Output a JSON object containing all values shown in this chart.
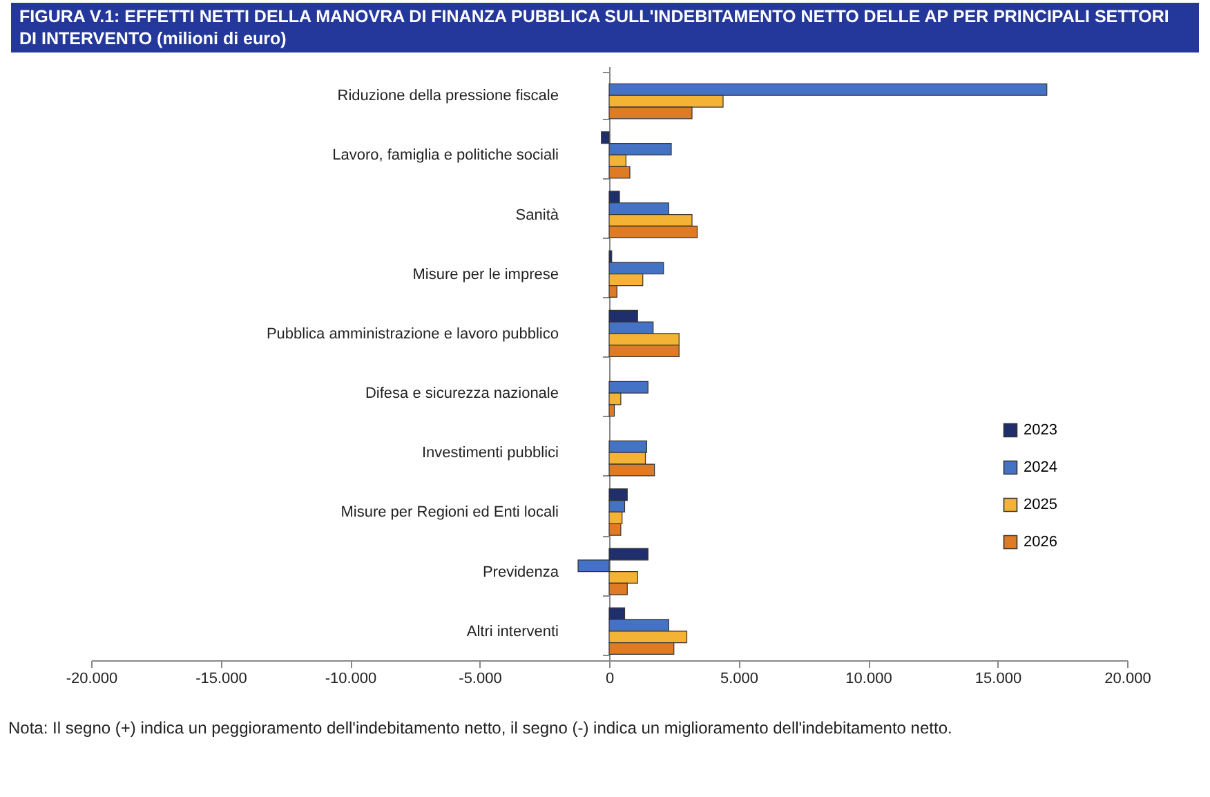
{
  "chart_data": {
    "type": "bar",
    "orientation": "horizontal",
    "title": "FIGURA V.1: EFFETTI NETTI DELLA MANOVRA DI FINANZA PUBBLICA SULL'INDEBITAMENTO NETTO DELLE AP PER PRINCIPALI SETTORI DI INTERVENTO (milioni di euro)",
    "categories": [
      "Riduzione della pressione fiscale",
      "Lavoro, famiglia e politiche sociali",
      "Sanità",
      "Misure per le imprese",
      "Pubblica amministrazione e lavoro pubblico",
      "Difesa e sicurezza nazionale",
      "Investimenti pubblici",
      "Misure per Regioni ed Enti locali",
      "Previdenza",
      "Altri interventi"
    ],
    "series": [
      {
        "name": "2023",
        "color": "#1f2f6e",
        "values": [
          null,
          -300,
          400,
          100,
          1100,
          null,
          null,
          700,
          1500,
          600
        ]
      },
      {
        "name": "2024",
        "color": "#4472c4",
        "values": [
          16900,
          2400,
          2300,
          2100,
          1700,
          1500,
          1450,
          600,
          -1200,
          2300
        ]
      },
      {
        "name": "2025",
        "color": "#f5b335",
        "values": [
          4400,
          650,
          3200,
          1300,
          2700,
          450,
          1400,
          500,
          1100,
          3000
        ]
      },
      {
        "name": "2026",
        "color": "#e07b25",
        "values": [
          3200,
          800,
          3400,
          300,
          2700,
          200,
          1750,
          450,
          700,
          2500
        ]
      }
    ],
    "xlim": [
      -20000,
      20000
    ],
    "xticks": [
      {
        "value": -20000,
        "label": "-20.000"
      },
      {
        "value": -15000,
        "label": "-15.000"
      },
      {
        "value": -10000,
        "label": "-10.000"
      },
      {
        "value": -5000,
        "label": "-5.000"
      },
      0,
      {
        "value": 5000,
        "label": "5.000"
      },
      {
        "value": 10000,
        "label": "10.000"
      },
      {
        "value": 15000,
        "label": "15.000"
      },
      {
        "value": 20000,
        "label": "20.000"
      }
    ],
    "legend": "right",
    "annotations": [
      "Nota: Il segno (+) indica un peggioramento dell'indebitamento netto, il segno (-) indica un miglioramento dell'indebitamento netto."
    ]
  }
}
